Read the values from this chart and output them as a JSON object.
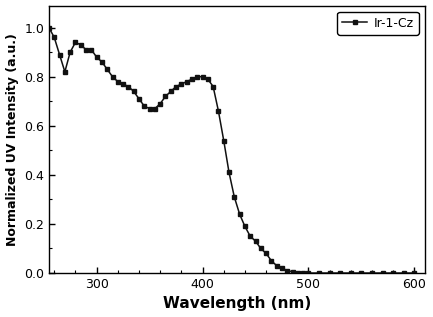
{
  "x": [
    255,
    260,
    265,
    270,
    275,
    280,
    285,
    290,
    295,
    300,
    305,
    310,
    315,
    320,
    325,
    330,
    335,
    340,
    345,
    350,
    355,
    360,
    365,
    370,
    375,
    380,
    385,
    390,
    395,
    400,
    405,
    410,
    415,
    420,
    425,
    430,
    435,
    440,
    445,
    450,
    455,
    460,
    465,
    470,
    475,
    480,
    485,
    490,
    495,
    500,
    510,
    520,
    530,
    540,
    550,
    560,
    570,
    580,
    590,
    600
  ],
  "y": [
    1.0,
    0.96,
    0.89,
    0.82,
    0.9,
    0.94,
    0.93,
    0.91,
    0.91,
    0.88,
    0.86,
    0.83,
    0.8,
    0.78,
    0.77,
    0.76,
    0.74,
    0.71,
    0.68,
    0.67,
    0.67,
    0.69,
    0.72,
    0.74,
    0.76,
    0.77,
    0.78,
    0.79,
    0.8,
    0.8,
    0.79,
    0.76,
    0.66,
    0.54,
    0.41,
    0.31,
    0.24,
    0.19,
    0.15,
    0.13,
    0.1,
    0.08,
    0.05,
    0.03,
    0.02,
    0.01,
    0.005,
    0.002,
    0.001,
    0.0,
    0.0,
    0.0,
    0.0,
    0.0,
    0.0,
    0.0,
    0.0,
    0.0,
    0.0,
    0.0
  ],
  "xlabel": "Wavelength (nm)",
  "ylabel": "Normalized UV Intensity (a.u.)",
  "legend_label": "Ir-1-Cz",
  "xlim": [
    255,
    610
  ],
  "ylim": [
    0.0,
    1.09
  ],
  "xticks": [
    300,
    400,
    500,
    600
  ],
  "yticks": [
    0.0,
    0.2,
    0.4,
    0.6,
    0.8,
    1.0
  ],
  "line_color": "#111111",
  "marker": "s",
  "markersize": 3.5,
  "linewidth": 1.1,
  "bg_color": "#ffffff",
  "xlabel_fontsize": 11,
  "ylabel_fontsize": 9,
  "tick_labelsize": 9
}
